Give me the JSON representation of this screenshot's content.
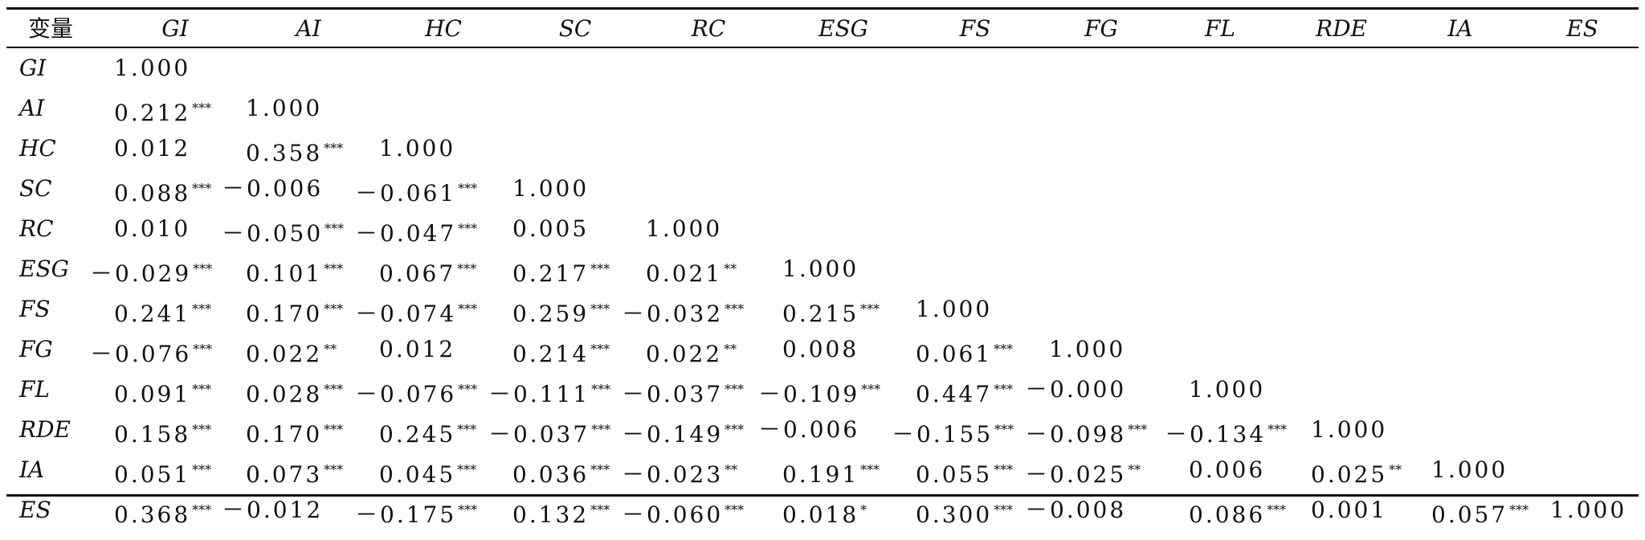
{
  "header": [
    "变量",
    "GI",
    "AI",
    "HC",
    "SC",
    "RC",
    "ESG",
    "FS",
    "FG",
    "FL",
    "RDE",
    "IA",
    "ES"
  ],
  "rows": [
    {
      "label": "GI",
      "cells": [
        [
          "1.000",
          ""
        ]
      ]
    },
    {
      "label": "AI",
      "cells": [
        [
          "0.212",
          "***"
        ],
        [
          "1.000",
          ""
        ]
      ]
    },
    {
      "label": "HC",
      "cells": [
        [
          "0.012",
          ""
        ],
        [
          "0.358",
          "***"
        ],
        [
          "1.000",
          ""
        ]
      ]
    },
    {
      "label": "SC",
      "cells": [
        [
          "0.088",
          "***"
        ],
        [
          "－0.006",
          ""
        ],
        [
          "－0.061",
          "***"
        ],
        [
          "1.000",
          ""
        ]
      ]
    },
    {
      "label": "RC",
      "cells": [
        [
          "0.010",
          ""
        ],
        [
          "－0.050",
          "***"
        ],
        [
          "－0.047",
          "***"
        ],
        [
          "0.005",
          ""
        ],
        [
          "1.000",
          ""
        ]
      ]
    },
    {
      "label": "ESG",
      "cells": [
        [
          "－0.029",
          "***"
        ],
        [
          "0.101",
          "***"
        ],
        [
          "0.067",
          "***"
        ],
        [
          "0.217",
          "***"
        ],
        [
          "0.021",
          "**"
        ],
        [
          "1.000",
          ""
        ]
      ]
    },
    {
      "label": "FS",
      "cells": [
        [
          "0.241",
          "***"
        ],
        [
          "0.170",
          "***"
        ],
        [
          "－0.074",
          "***"
        ],
        [
          "0.259",
          "***"
        ],
        [
          "－0.032",
          "***"
        ],
        [
          "0.215",
          "***"
        ],
        [
          "1.000",
          ""
        ]
      ]
    },
    {
      "label": "FG",
      "cells": [
        [
          "－0.076",
          "***"
        ],
        [
          "0.022",
          "**"
        ],
        [
          "0.012",
          ""
        ],
        [
          "0.214",
          "***"
        ],
        [
          "0.022",
          "**"
        ],
        [
          "0.008",
          ""
        ],
        [
          "0.061",
          "***"
        ],
        [
          "1.000",
          ""
        ]
      ]
    },
    {
      "label": "FL",
      "cells": [
        [
          "0.091",
          "***"
        ],
        [
          "0.028",
          "***"
        ],
        [
          "－0.076",
          "***"
        ],
        [
          "－0.111",
          "***"
        ],
        [
          "－0.037",
          "***"
        ],
        [
          "－0.109",
          "***"
        ],
        [
          "0.447",
          "***"
        ],
        [
          "－0.000",
          ""
        ],
        [
          "1.000",
          ""
        ]
      ]
    },
    {
      "label": "RDE",
      "cells": [
        [
          "0.158",
          "***"
        ],
        [
          "0.170",
          "***"
        ],
        [
          "0.245",
          "***"
        ],
        [
          "－0.037",
          "***"
        ],
        [
          "－0.149",
          "***"
        ],
        [
          "－0.006",
          ""
        ],
        [
          "－0.155",
          "***"
        ],
        [
          "－0.098",
          "***"
        ],
        [
          "－0.134",
          "***"
        ],
        [
          "1.000",
          ""
        ]
      ]
    },
    {
      "label": "IA",
      "cells": [
        [
          "0.051",
          "***"
        ],
        [
          "0.073",
          "***"
        ],
        [
          "0.045",
          "***"
        ],
        [
          "0.036",
          "***"
        ],
        [
          "－0.023",
          "**"
        ],
        [
          "0.191",
          "***"
        ],
        [
          "0.055",
          "***"
        ],
        [
          "－0.025",
          "**"
        ],
        [
          "0.006",
          ""
        ],
        [
          "0.025",
          "**"
        ],
        [
          "1.000",
          ""
        ]
      ]
    },
    {
      "label": "ES",
      "cells": [
        [
          "0.368",
          "***"
        ],
        [
          "－0.012",
          ""
        ],
        [
          "－0.175",
          "***"
        ],
        [
          "0.132",
          "***"
        ],
        [
          "－0.060",
          "***"
        ],
        [
          "0.018",
          "*"
        ],
        [
          "0.300",
          "***"
        ],
        [
          "－0.008",
          ""
        ],
        [
          "0.086",
          "***"
        ],
        [
          "0.001",
          ""
        ],
        [
          "0.057",
          "***"
        ],
        [
          "1.000",
          ""
        ]
      ]
    }
  ]
}
